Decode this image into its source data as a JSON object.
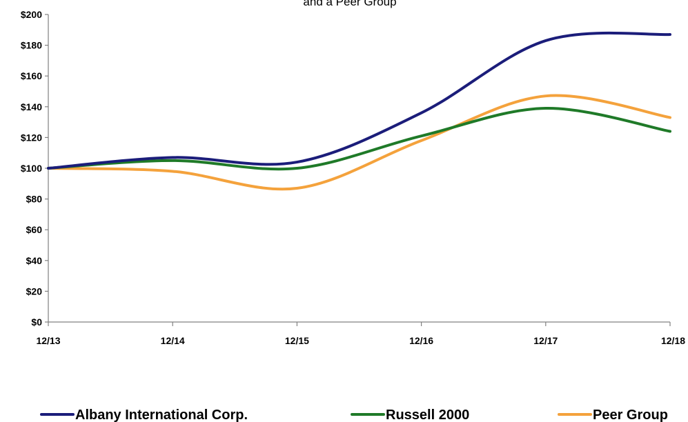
{
  "chart_data": {
    "type": "line",
    "title": "and a Peer Group",
    "x": [
      "12/13",
      "12/14",
      "12/15",
      "12/16",
      "12/17",
      "12/18"
    ],
    "ylim": [
      0,
      200
    ],
    "yticks": [
      0,
      20,
      40,
      60,
      80,
      100,
      120,
      140,
      160,
      180,
      200
    ],
    "ytick_labels": [
      "$0",
      "$20",
      "$40",
      "$60",
      "$80",
      "$100",
      "$120",
      "$140",
      "$160",
      "$180",
      "$200"
    ],
    "grid": false,
    "legend_position": "bottom",
    "series": [
      {
        "name": "Albany International Corp.",
        "color": "#1b1d7a",
        "values": [
          100,
          107,
          104,
          136,
          183,
          187
        ]
      },
      {
        "name": "Russell 2000",
        "color": "#1f7a28",
        "values": [
          100,
          105,
          100,
          121,
          139,
          124
        ]
      },
      {
        "name": "Peer Group",
        "color": "#f4a23c",
        "values": [
          100,
          98,
          87,
          118,
          147,
          133
        ]
      }
    ]
  }
}
